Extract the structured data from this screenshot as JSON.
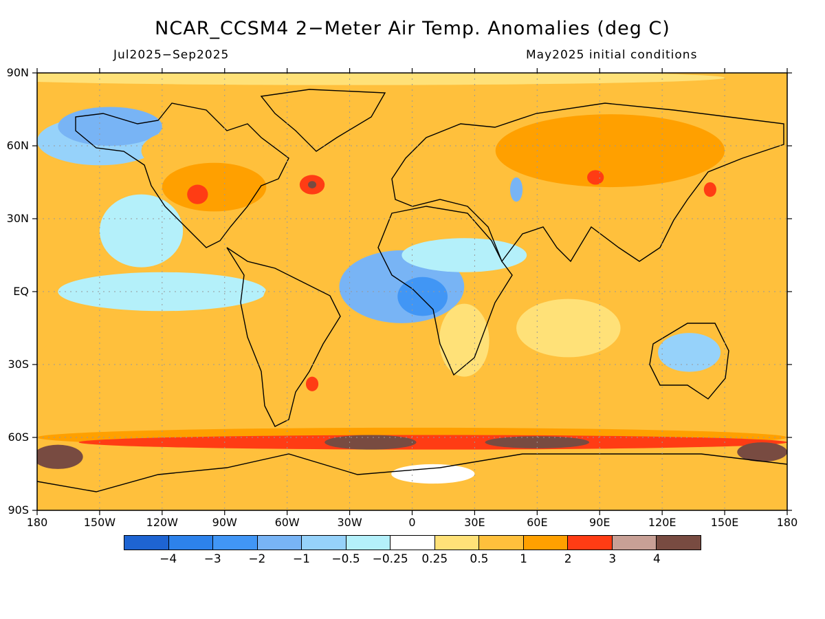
{
  "title": "NCAR_CCSM4 2−Meter Air Temp. Anomalies (deg C)",
  "period": "Jul2025−Sep2025",
  "init": "May2025 initial conditions",
  "lat_labels": [
    "90N",
    "60N",
    "30N",
    "EQ",
    "30S",
    "60S",
    "90S"
  ],
  "lon_labels": [
    "180",
    "150W",
    "120W",
    "90W",
    "60W",
    "30W",
    "0",
    "30E",
    "60E",
    "90E",
    "120E",
    "150E",
    "180"
  ],
  "colorbar": {
    "colors": [
      "#1e64d2",
      "#2d82eb",
      "#4196f5",
      "#78b4f5",
      "#96d2fa",
      "#b4f0fa",
      "#ffffff",
      "#ffe178",
      "#ffc03c",
      "#ffa000",
      "#ff3c14",
      "#c8a096",
      "#784b41"
    ],
    "labels": [
      "−4",
      "−3",
      "−2",
      "−1",
      "−0.5",
      "−0.25",
      "0.25",
      "0.5",
      "1",
      "2",
      "3",
      "4"
    ]
  },
  "regions": [
    {
      "name": "arctic-ocean-warm",
      "lon": -30,
      "lat": 88,
      "rx": 180,
      "ry": 3,
      "level": "0.5"
    },
    {
      "name": "north-pacific-cool",
      "lon": -150,
      "lat": 62,
      "rx": 30,
      "ry": 10,
      "level": "-0.5"
    },
    {
      "name": "alaska-cool",
      "lon": -145,
      "lat": 68,
      "rx": 25,
      "ry": 8,
      "level": "-1"
    },
    {
      "name": "greenland-warm",
      "lon": -40,
      "lat": 72,
      "rx": 20,
      "ry": 10,
      "level": "1"
    },
    {
      "name": "canada-warm",
      "lon": -100,
      "lat": 58,
      "rx": 30,
      "ry": 10,
      "level": "1"
    },
    {
      "name": "north-america-warm",
      "lon": -95,
      "lat": 43,
      "rx": 25,
      "ry": 10,
      "level": "2"
    },
    {
      "name": "central-us-hot",
      "lon": -103,
      "lat": 40,
      "rx": 5,
      "ry": 4,
      "level": "3"
    },
    {
      "name": "north-atlantic-hot",
      "lon": -48,
      "lat": 44,
      "rx": 6,
      "ry": 4,
      "level": "3"
    },
    {
      "name": "north-atlantic-peak",
      "lon": -48,
      "lat": 44,
      "rx": 2,
      "ry": 1.5,
      "level": "4"
    },
    {
      "name": "east-pacific-cool",
      "lon": -130,
      "lat": 25,
      "rx": 20,
      "ry": 15,
      "level": "-0.25"
    },
    {
      "name": "tropical-pacific-cool",
      "lon": -120,
      "lat": 0,
      "rx": 50,
      "ry": 8,
      "level": "-0.25"
    },
    {
      "name": "tropical-atlantic-cool",
      "lon": -5,
      "lat": 2,
      "rx": 30,
      "ry": 15,
      "level": "-1"
    },
    {
      "name": "gulf-of-guinea-cool",
      "lon": 5,
      "lat": -2,
      "rx": 12,
      "ry": 8,
      "level": "-2"
    },
    {
      "name": "sahel-cool",
      "lon": 25,
      "lat": 15,
      "rx": 30,
      "ry": 7,
      "level": "-0.25"
    },
    {
      "name": "south-america-warm",
      "lon": -55,
      "lat": -10,
      "rx": 18,
      "ry": 20,
      "level": "1"
    },
    {
      "name": "south-america-hot",
      "lon": -48,
      "lat": -38,
      "rx": 3,
      "ry": 3,
      "level": "3"
    },
    {
      "name": "southern-africa-warm",
      "lon": 25,
      "lat": -20,
      "rx": 12,
      "ry": 15,
      "level": "0.5"
    },
    {
      "name": "europe-warm",
      "lon": 15,
      "lat": 48,
      "rx": 20,
      "ry": 10,
      "level": "1"
    },
    {
      "name": "middle-east-warm",
      "lon": 40,
      "lat": 33,
      "rx": 20,
      "ry": 8,
      "level": "1"
    },
    {
      "name": "caspian-cool",
      "lon": 50,
      "lat": 42,
      "rx": 3,
      "ry": 5,
      "level": "-1"
    },
    {
      "name": "siberia-warm",
      "lon": 95,
      "lat": 58,
      "rx": 55,
      "ry": 15,
      "level": "2"
    },
    {
      "name": "siberia-hot",
      "lon": 88,
      "lat": 47,
      "rx": 4,
      "ry": 3,
      "level": "3"
    },
    {
      "name": "japan-hot",
      "lon": 143,
      "lat": 42,
      "rx": 3,
      "ry": 3,
      "level": "3"
    },
    {
      "name": "north-pacific-west-warm",
      "lon": 165,
      "lat": 43,
      "rx": 15,
      "ry": 5,
      "level": "1"
    },
    {
      "name": "indian-ocean-warm",
      "lon": 75,
      "lat": -15,
      "rx": 25,
      "ry": 12,
      "level": "0.5"
    },
    {
      "name": "australia-cool",
      "lon": 133,
      "lat": -25,
      "rx": 15,
      "ry": 8,
      "level": "-0.5"
    },
    {
      "name": "south-pacific-warm",
      "lon": -150,
      "lat": -30,
      "rx": 30,
      "ry": 15,
      "level": "1"
    },
    {
      "name": "southern-ocean-warm",
      "lon": 0,
      "lat": -52,
      "rx": 180,
      "ry": 6,
      "level": "1"
    },
    {
      "name": "southern-ocean-band-2",
      "lon": 0,
      "lat": -60,
      "rx": 180,
      "ry": 4,
      "level": "2"
    },
    {
      "name": "southern-ocean-band-3",
      "lon": 10,
      "lat": -62,
      "rx": 170,
      "ry": 3,
      "level": "3"
    },
    {
      "name": "southern-ocean-peak-atl",
      "lon": -20,
      "lat": -62,
      "rx": 22,
      "ry": 3,
      "level": "4"
    },
    {
      "name": "southern-ocean-peak-ind",
      "lon": 60,
      "lat": -62,
      "rx": 25,
      "ry": 2.5,
      "level": "4"
    },
    {
      "name": "ross-sea-peak",
      "lon": -170,
      "lat": -68,
      "rx": 12,
      "ry": 5,
      "level": "4"
    },
    {
      "name": "ross-sea-peak-e",
      "lon": 168,
      "lat": -66,
      "rx": 12,
      "ry": 4,
      "level": "4"
    },
    {
      "name": "antarctica-warm",
      "lon": 20,
      "lat": -80,
      "rx": 180,
      "ry": 10,
      "level": "1"
    },
    {
      "name": "antarctica-neutral",
      "lon": 10,
      "lat": -75,
      "rx": 20,
      "ry": 4,
      "level": "0.25"
    }
  ]
}
